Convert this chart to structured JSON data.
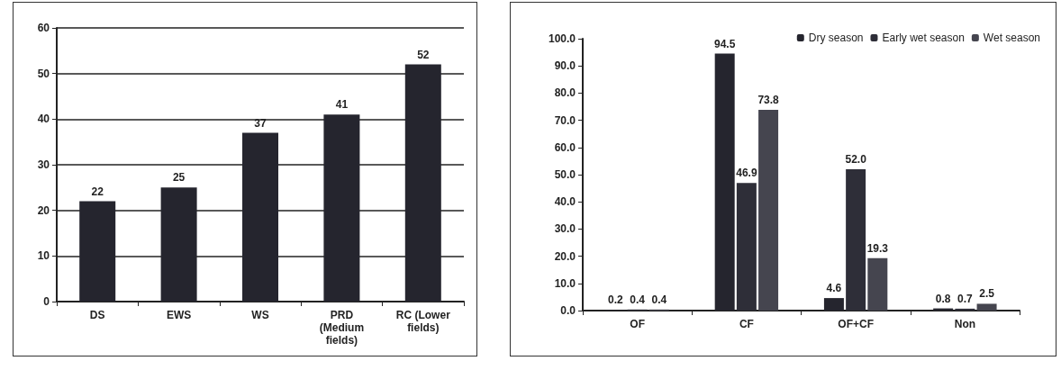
{
  "chart_data": [
    {
      "type": "bar",
      "categories": [
        "DS",
        "EWS",
        "WS",
        "PRD\n(Medium\nfields)",
        "RC (Lower\nfields)"
      ],
      "values": [
        22,
        25,
        37,
        41,
        52
      ],
      "color": "#25252e",
      "ylim": [
        0,
        60
      ],
      "yticks": [
        0,
        10,
        20,
        30,
        40,
        50,
        60
      ],
      "grid": "y",
      "data_labels": true,
      "legend": false
    },
    {
      "type": "bar",
      "categories": [
        "OF",
        "CF",
        "OF+CF",
        "Non"
      ],
      "series": [
        {
          "name": "Dry season",
          "color": "#25252e",
          "values": [
            0.2,
            94.5,
            4.6,
            0.8
          ],
          "value_labels": [
            "0.2",
            "94.5",
            "4.6",
            "0.8"
          ]
        },
        {
          "name": "Early wet season",
          "color": "#2e2e38",
          "values": [
            0.4,
            46.9,
            52.0,
            0.7
          ],
          "value_labels": [
            "0.4",
            "46.9",
            "52.0",
            "0.7"
          ]
        },
        {
          "name": "Wet season",
          "color": "#45454f",
          "values": [
            0.4,
            73.8,
            19.3,
            2.5
          ],
          "value_labels": [
            "0.4",
            "73.8",
            "19.3",
            "2.5"
          ]
        }
      ],
      "ylim": [
        0,
        100
      ],
      "yticks": [
        {
          "value": 0,
          "label": "0.0"
        },
        {
          "value": 10,
          "label": "10.0"
        },
        {
          "value": 20,
          "label": "20.0"
        },
        {
          "value": 30,
          "label": "30.0"
        },
        {
          "value": 40,
          "label": "40.0"
        },
        {
          "value": 50,
          "label": "50.0"
        },
        {
          "value": 60,
          "label": "60.0"
        },
        {
          "value": 70,
          "label": "70.0"
        },
        {
          "value": 80,
          "label": "80.0"
        },
        {
          "value": 90,
          "label": "90.0"
        },
        {
          "value": 100,
          "label": "100.0"
        }
      ],
      "grid": false,
      "legend": "top right"
    }
  ]
}
